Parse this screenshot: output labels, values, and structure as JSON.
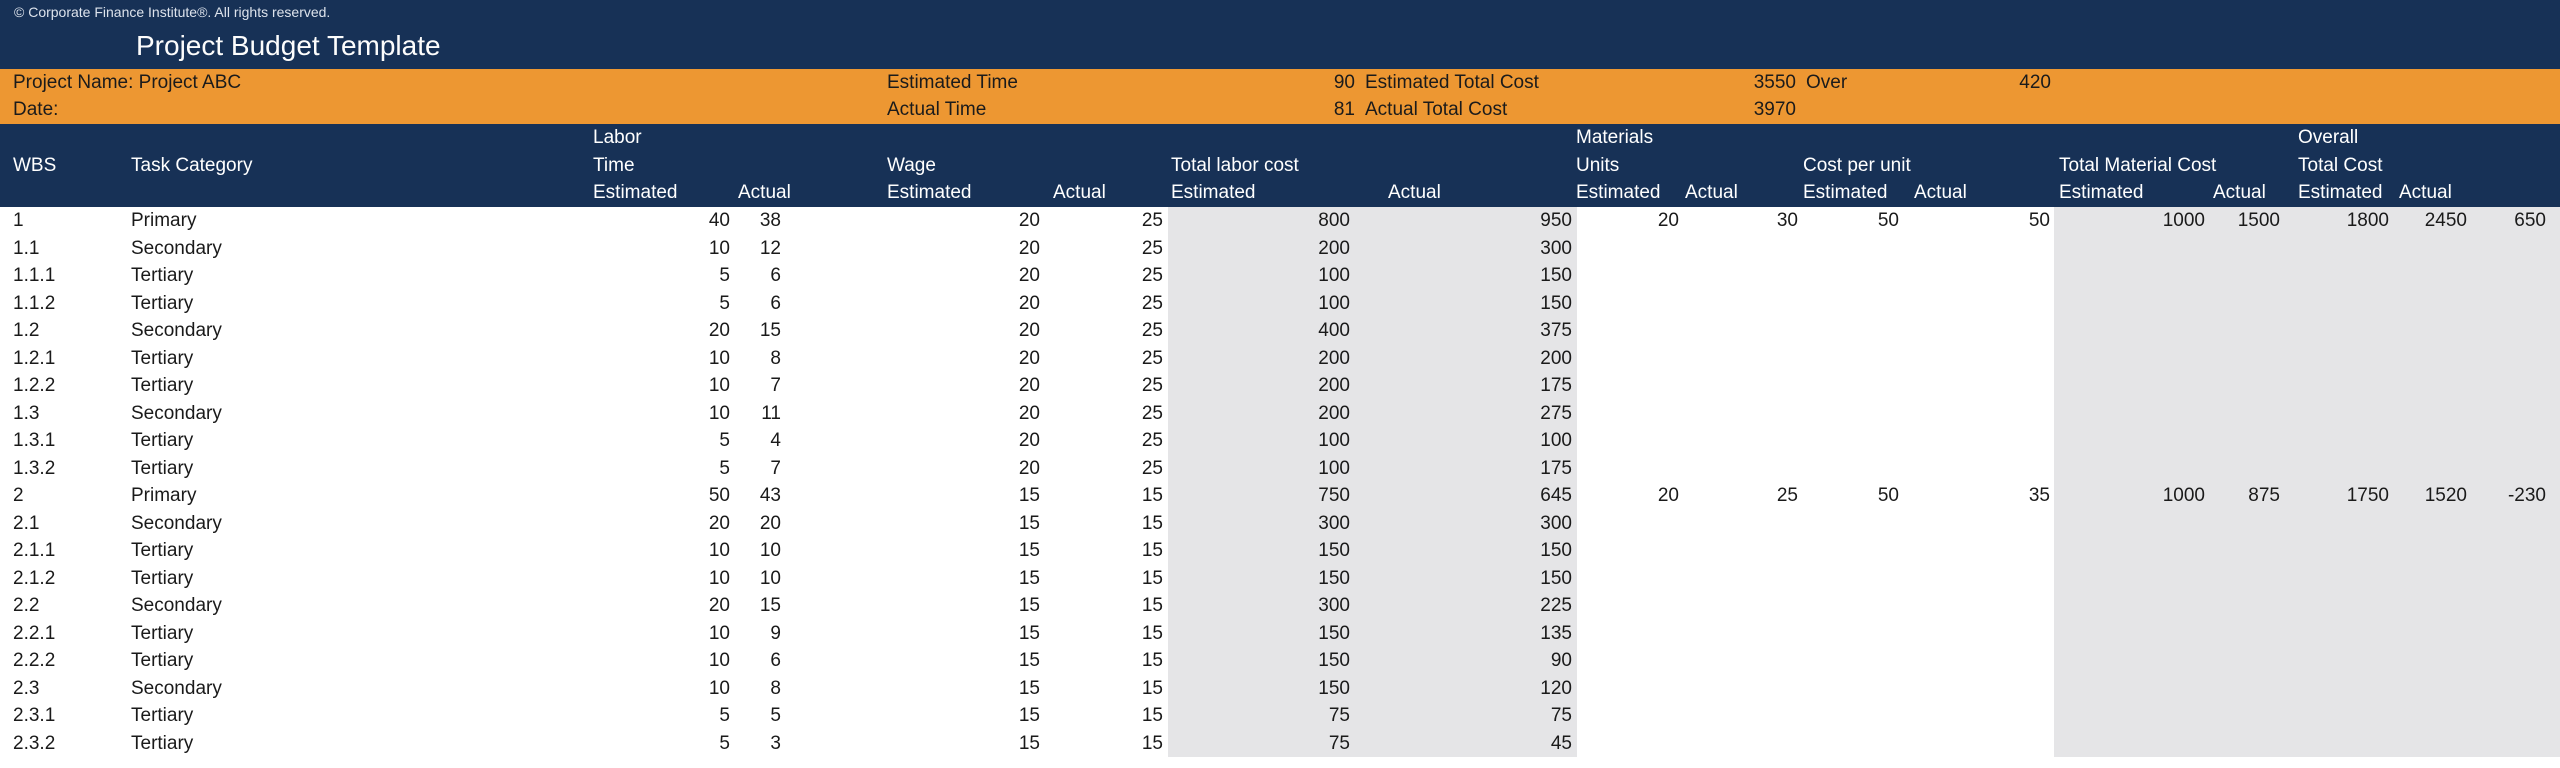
{
  "window": {
    "copyright": "© Corporate Finance Institute®. All rights reserved.",
    "title": "Project Budget Template"
  },
  "info_bar": {
    "project_name_label": "Project Name: Project ABC",
    "date_label": "Date:",
    "estimated_time_label": "Estimated Time",
    "estimated_time_value": "90",
    "estimated_total_cost_label": "Estimated Total Cost",
    "estimated_total_cost_value": "3550",
    "over_label": "Over",
    "over_value": "420",
    "actual_time_label": "Actual Time",
    "actual_time_value": "81",
    "actual_total_cost_label": "Actual Total Cost",
    "actual_total_cost_value": "3970"
  },
  "colors": {
    "navy": "#173156",
    "orange": "#ED9732",
    "band_gray": "#E5E5E7"
  },
  "table": {
    "group_headers": {
      "labor": "Labor",
      "materials": "Materials",
      "overall": "Overall"
    },
    "column_headers": {
      "wbs": "WBS",
      "task_category": "Task Category",
      "time": "Time",
      "wage": "Wage",
      "total_labor_cost": "Total labor cost",
      "units": "Units",
      "cost_per_unit": "Cost per unit",
      "total_material_cost": "Total Material Cost",
      "total_cost": "Total Cost"
    },
    "sub_headers": {
      "estimated": "Estimated",
      "actual": "Actual"
    },
    "rows": [
      [
        "1",
        "Primary",
        "40",
        "38",
        "20",
        "25",
        "800",
        "950",
        "20",
        "30",
        "50",
        "50",
        "1000",
        "1500",
        "1800",
        "2450",
        "650"
      ],
      [
        "1.1",
        "Secondary",
        "10",
        "12",
        "20",
        "25",
        "200",
        "300",
        "",
        "",
        "",
        "",
        "",
        "",
        "",
        "",
        ""
      ],
      [
        "1.1.1",
        "Tertiary",
        "5",
        "6",
        "20",
        "25",
        "100",
        "150",
        "",
        "",
        "",
        "",
        "",
        "",
        "",
        "",
        ""
      ],
      [
        "1.1.2",
        "Tertiary",
        "5",
        "6",
        "20",
        "25",
        "100",
        "150",
        "",
        "",
        "",
        "",
        "",
        "",
        "",
        "",
        ""
      ],
      [
        "1.2",
        "Secondary",
        "20",
        "15",
        "20",
        "25",
        "400",
        "375",
        "",
        "",
        "",
        "",
        "",
        "",
        "",
        "",
        ""
      ],
      [
        "1.2.1",
        "Tertiary",
        "10",
        "8",
        "20",
        "25",
        "200",
        "200",
        "",
        "",
        "",
        "",
        "",
        "",
        "",
        "",
        ""
      ],
      [
        "1.2.2",
        "Tertiary",
        "10",
        "7",
        "20",
        "25",
        "200",
        "175",
        "",
        "",
        "",
        "",
        "",
        "",
        "",
        "",
        ""
      ],
      [
        "1.3",
        "Secondary",
        "10",
        "11",
        "20",
        "25",
        "200",
        "275",
        "",
        "",
        "",
        "",
        "",
        "",
        "",
        "",
        ""
      ],
      [
        "1.3.1",
        "Tertiary",
        "5",
        "4",
        "20",
        "25",
        "100",
        "100",
        "",
        "",
        "",
        "",
        "",
        "",
        "",
        "",
        ""
      ],
      [
        "1.3.2",
        "Tertiary",
        "5",
        "7",
        "20",
        "25",
        "100",
        "175",
        "",
        "",
        "",
        "",
        "",
        "",
        "",
        "",
        ""
      ],
      [
        "2",
        "Primary",
        "50",
        "43",
        "15",
        "15",
        "750",
        "645",
        "20",
        "25",
        "50",
        "35",
        "1000",
        "875",
        "1750",
        "1520",
        "-230"
      ],
      [
        "2.1",
        "Secondary",
        "20",
        "20",
        "15",
        "15",
        "300",
        "300",
        "",
        "",
        "",
        "",
        "",
        "",
        "",
        "",
        ""
      ],
      [
        "2.1.1",
        "Tertiary",
        "10",
        "10",
        "15",
        "15",
        "150",
        "150",
        "",
        "",
        "",
        "",
        "",
        "",
        "",
        "",
        ""
      ],
      [
        "2.1.2",
        "Tertiary",
        "10",
        "10",
        "15",
        "15",
        "150",
        "150",
        "",
        "",
        "",
        "",
        "",
        "",
        "",
        "",
        ""
      ],
      [
        "2.2",
        "Secondary",
        "20",
        "15",
        "15",
        "15",
        "300",
        "225",
        "",
        "",
        "",
        "",
        "",
        "",
        "",
        "",
        ""
      ],
      [
        "2.2.1",
        "Tertiary",
        "10",
        "9",
        "15",
        "15",
        "150",
        "135",
        "",
        "",
        "",
        "",
        "",
        "",
        "",
        "",
        ""
      ],
      [
        "2.2.2",
        "Tertiary",
        "10",
        "6",
        "15",
        "15",
        "150",
        "90",
        "",
        "",
        "",
        "",
        "",
        "",
        "",
        "",
        ""
      ],
      [
        "2.3",
        "Secondary",
        "10",
        "8",
        "15",
        "15",
        "150",
        "120",
        "",
        "",
        "",
        "",
        "",
        "",
        "",
        "",
        ""
      ],
      [
        "2.3.1",
        "Tertiary",
        "5",
        "5",
        "15",
        "15",
        "75",
        "75",
        "",
        "",
        "",
        "",
        "",
        "",
        "",
        "",
        ""
      ],
      [
        "2.3.2",
        "Tertiary",
        "5",
        "3",
        "15",
        "15",
        "75",
        "45",
        "",
        "",
        "",
        "",
        "",
        "",
        "",
        "",
        ""
      ]
    ]
  }
}
